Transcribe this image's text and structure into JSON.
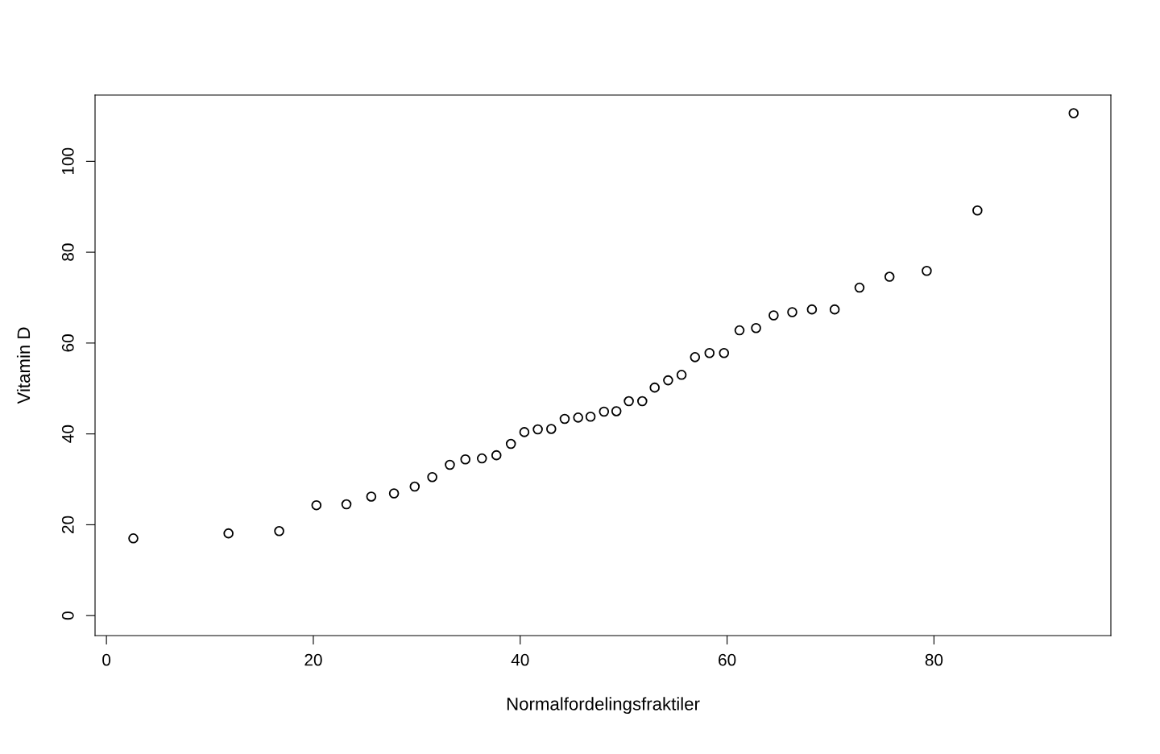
{
  "chart_data": {
    "type": "scatter",
    "xlabel": "Normalfordelingsfraktiler",
    "ylabel": "Vitamin D",
    "x": [
      2.6,
      11.8,
      16.7,
      20.3,
      23.2,
      25.6,
      27.8,
      29.8,
      31.5,
      33.2,
      34.7,
      36.3,
      37.7,
      39.1,
      40.4,
      41.7,
      43.0,
      44.3,
      45.6,
      46.8,
      48.1,
      49.3,
      50.5,
      51.8,
      53.0,
      54.3,
      55.6,
      56.9,
      58.3,
      59.7,
      61.2,
      62.8,
      64.5,
      66.3,
      68.2,
      70.4,
      72.8,
      75.7,
      79.3,
      84.2,
      93.5
    ],
    "values": [
      17.0,
      18.1,
      18.6,
      24.3,
      24.5,
      26.2,
      26.9,
      28.4,
      30.5,
      33.2,
      34.4,
      34.6,
      35.3,
      37.8,
      40.4,
      41.0,
      41.1,
      43.3,
      43.6,
      43.8,
      44.9,
      45.0,
      47.2,
      47.2,
      50.2,
      51.8,
      53.0,
      56.9,
      57.8,
      57.8,
      62.8,
      63.3,
      66.1,
      66.8,
      67.4,
      67.4,
      72.2,
      74.6,
      75.9,
      89.2,
      110.6
    ],
    "color": "#000000",
    "marker": "circle",
    "grid": false,
    "legend": false,
    "xlim": [
      -1.1,
      97.1
    ],
    "ylim": [
      -4.4,
      114.6
    ],
    "xticks": [
      0,
      20,
      40,
      60,
      80
    ],
    "yticks": [
      0,
      20,
      40,
      60,
      80,
      100
    ]
  }
}
